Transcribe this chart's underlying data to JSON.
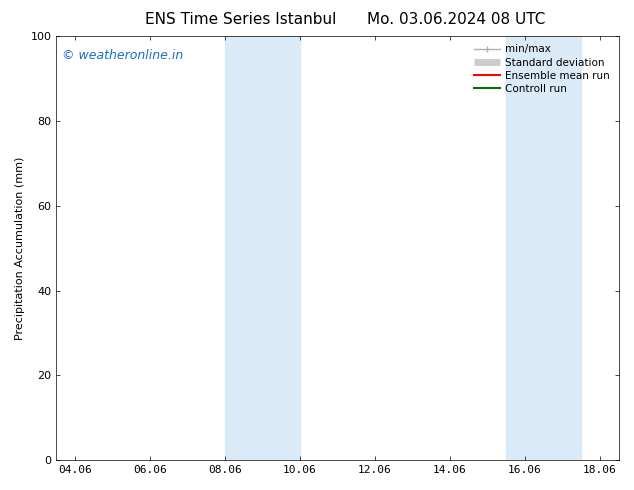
{
  "title_left": "ENS Time Series Istanbul",
  "title_right": "Mo. 03.06.2024 08 UTC",
  "ylabel": "Precipitation Accumulation (mm)",
  "ylim": [
    0,
    100
  ],
  "yticks": [
    0,
    20,
    40,
    60,
    80,
    100
  ],
  "xtick_labels": [
    "04.06",
    "06.06",
    "08.06",
    "10.06",
    "12.06",
    "14.06",
    "16.06",
    "18.06"
  ],
  "xtick_positions": [
    4,
    6,
    8,
    10,
    12,
    14,
    16,
    18
  ],
  "xlim": [
    3.5,
    18.5
  ],
  "shaded_regions": [
    {
      "xmin": 8.0,
      "xmax": 10.0,
      "color": "#daeaf7"
    },
    {
      "xmin": 15.5,
      "xmax": 17.5,
      "color": "#daeaf7"
    }
  ],
  "watermark_text": "© weatheronline.in",
  "watermark_color": "#1a6fc4",
  "background_color": "#ffffff",
  "legend_items": [
    {
      "label": "min/max",
      "color": "#b0b0b0",
      "lw": 1.0,
      "style": "line_with_ticks"
    },
    {
      "label": "Standard deviation",
      "color": "#cccccc",
      "lw": 5,
      "style": "thick_line"
    },
    {
      "label": "Ensemble mean run",
      "color": "#ff0000",
      "lw": 1.5,
      "style": "line"
    },
    {
      "label": "Controll run",
      "color": "#007000",
      "lw": 1.5,
      "style": "line"
    }
  ],
  "title_fontsize": 11,
  "tick_fontsize": 8,
  "label_fontsize": 8,
  "watermark_fontsize": 9,
  "legend_fontsize": 7.5
}
